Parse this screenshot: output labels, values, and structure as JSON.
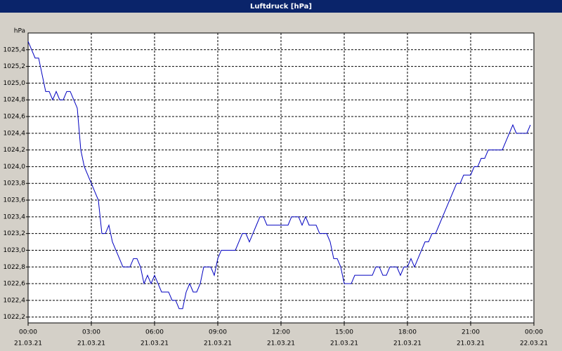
{
  "chart_data": {
    "type": "line",
    "title": "Luftdruck [hPa]",
    "ylabel": "hPa",
    "x": [
      0,
      10,
      20,
      30,
      40,
      50,
      60,
      70,
      80,
      90,
      100,
      110,
      120,
      130,
      140,
      150,
      160,
      170,
      180,
      190,
      200,
      210,
      220,
      230,
      240,
      250,
      260,
      270,
      280,
      290,
      300,
      310,
      320,
      330,
      340,
      350,
      360,
      370,
      380,
      390,
      400,
      410,
      420,
      430,
      440,
      450,
      460,
      470,
      480,
      490,
      500,
      510,
      520,
      530,
      540,
      550,
      560,
      570,
      580,
      590,
      600,
      610,
      620,
      630,
      640,
      650,
      660,
      670,
      680,
      690,
      700,
      710,
      720,
      730,
      740,
      750,
      760,
      770,
      780,
      790,
      800,
      810,
      820,
      830,
      840,
      850,
      860,
      870,
      880,
      890,
      900,
      910,
      920,
      930,
      940,
      950,
      960,
      970,
      980,
      990,
      1000,
      1010,
      1020,
      1030,
      1040,
      1050,
      1060,
      1070,
      1080,
      1090,
      1100,
      1110,
      1120,
      1130,
      1140,
      1150,
      1160,
      1170,
      1180,
      1190,
      1200,
      1210,
      1220,
      1230,
      1240,
      1250,
      1260,
      1270,
      1280,
      1290,
      1300,
      1310,
      1320,
      1330,
      1340,
      1350,
      1360,
      1370,
      1380,
      1390,
      1400,
      1410,
      1420,
      1430
    ],
    "series": [
      {
        "name": "Luftdruck",
        "color": "#0000c0",
        "values": [
          1025.5,
          1025.4,
          1025.3,
          1025.3,
          1025.1,
          1024.9,
          1024.9,
          1024.8,
          1024.9,
          1024.8,
          1024.8,
          1024.9,
          1024.9,
          1024.8,
          1024.7,
          1024.2,
          1024.0,
          1023.9,
          1023.8,
          1023.7,
          1023.6,
          1023.2,
          1023.2,
          1023.3,
          1023.1,
          1023.0,
          1022.9,
          1022.8,
          1022.8,
          1022.8,
          1022.9,
          1022.9,
          1022.8,
          1022.6,
          1022.7,
          1022.6,
          1022.7,
          1022.6,
          1022.5,
          1022.5,
          1022.5,
          1022.4,
          1022.4,
          1022.3,
          1022.3,
          1022.5,
          1022.6,
          1022.5,
          1022.5,
          1022.6,
          1022.8,
          1022.8,
          1022.8,
          1022.7,
          1022.9,
          1023.0,
          1023.0,
          1023.0,
          1023.0,
          1023.0,
          1023.1,
          1023.2,
          1023.2,
          1023.1,
          1023.2,
          1023.3,
          1023.4,
          1023.4,
          1023.3,
          1023.3,
          1023.3,
          1023.3,
          1023.3,
          1023.3,
          1023.3,
          1023.4,
          1023.4,
          1023.4,
          1023.3,
          1023.4,
          1023.3,
          1023.3,
          1023.3,
          1023.2,
          1023.2,
          1023.2,
          1023.1,
          1022.9,
          1022.9,
          1022.8,
          1022.6,
          1022.6,
          1022.6,
          1022.7,
          1022.7,
          1022.7,
          1022.7,
          1022.7,
          1022.7,
          1022.8,
          1022.8,
          1022.7,
          1022.7,
          1022.8,
          1022.8,
          1022.8,
          1022.7,
          1022.8,
          1022.8,
          1022.9,
          1022.8,
          1022.9,
          1023.0,
          1023.1,
          1023.1,
          1023.2,
          1023.2,
          1023.3,
          1023.4,
          1023.5,
          1023.6,
          1023.7,
          1023.8,
          1023.8,
          1023.9,
          1023.9,
          1023.9,
          1024.0,
          1024.0,
          1024.1,
          1024.1,
          1024.2,
          1024.2,
          1024.2,
          1024.2,
          1024.2,
          1024.3,
          1024.4,
          1024.5,
          1024.4,
          1024.4,
          1024.4,
          1024.4,
          1024.5
        ]
      }
    ],
    "xlim": [
      0,
      1440
    ],
    "xticks": [
      {
        "value": 0,
        "label": "00:00"
      },
      {
        "value": 180,
        "label": "03:00"
      },
      {
        "value": 360,
        "label": "06:00"
      },
      {
        "value": 540,
        "label": "09:00"
      },
      {
        "value": 720,
        "label": "12:00"
      },
      {
        "value": 900,
        "label": "15:00"
      },
      {
        "value": 1080,
        "label": "18:00"
      },
      {
        "value": 1260,
        "label": "21:00"
      },
      {
        "value": 1440,
        "label": "00:00"
      }
    ],
    "xtick_dates": [
      "21.03.21",
      "21.03.21",
      "21.03.21",
      "21.03.21",
      "21.03.21",
      "21.03.21",
      "21.03.21",
      "21.03.21",
      "22.03.21"
    ],
    "ylim": [
      1022.13,
      1025.6
    ],
    "yticks": [
      {
        "value": 1022.2,
        "label": "1022,2"
      },
      {
        "value": 1022.4,
        "label": "1022,4"
      },
      {
        "value": 1022.6,
        "label": "1022,6"
      },
      {
        "value": 1022.8,
        "label": "1022,8"
      },
      {
        "value": 1023.0,
        "label": "1023,0"
      },
      {
        "value": 1023.2,
        "label": "1023,2"
      },
      {
        "value": 1023.4,
        "label": "1023,4"
      },
      {
        "value": 1023.6,
        "label": "1023,6"
      },
      {
        "value": 1023.8,
        "label": "1023,8"
      },
      {
        "value": 1024.0,
        "label": "1024,0"
      },
      {
        "value": 1024.2,
        "label": "1024,2"
      },
      {
        "value": 1024.4,
        "label": "1024,4"
      },
      {
        "value": 1024.6,
        "label": "1024,6"
      },
      {
        "value": 1024.8,
        "label": "1024,8"
      },
      {
        "value": 1025.0,
        "label": "1025,0"
      },
      {
        "value": 1025.2,
        "label": "1025,2"
      },
      {
        "value": 1025.4,
        "label": "1025,4"
      }
    ],
    "grid": true
  }
}
